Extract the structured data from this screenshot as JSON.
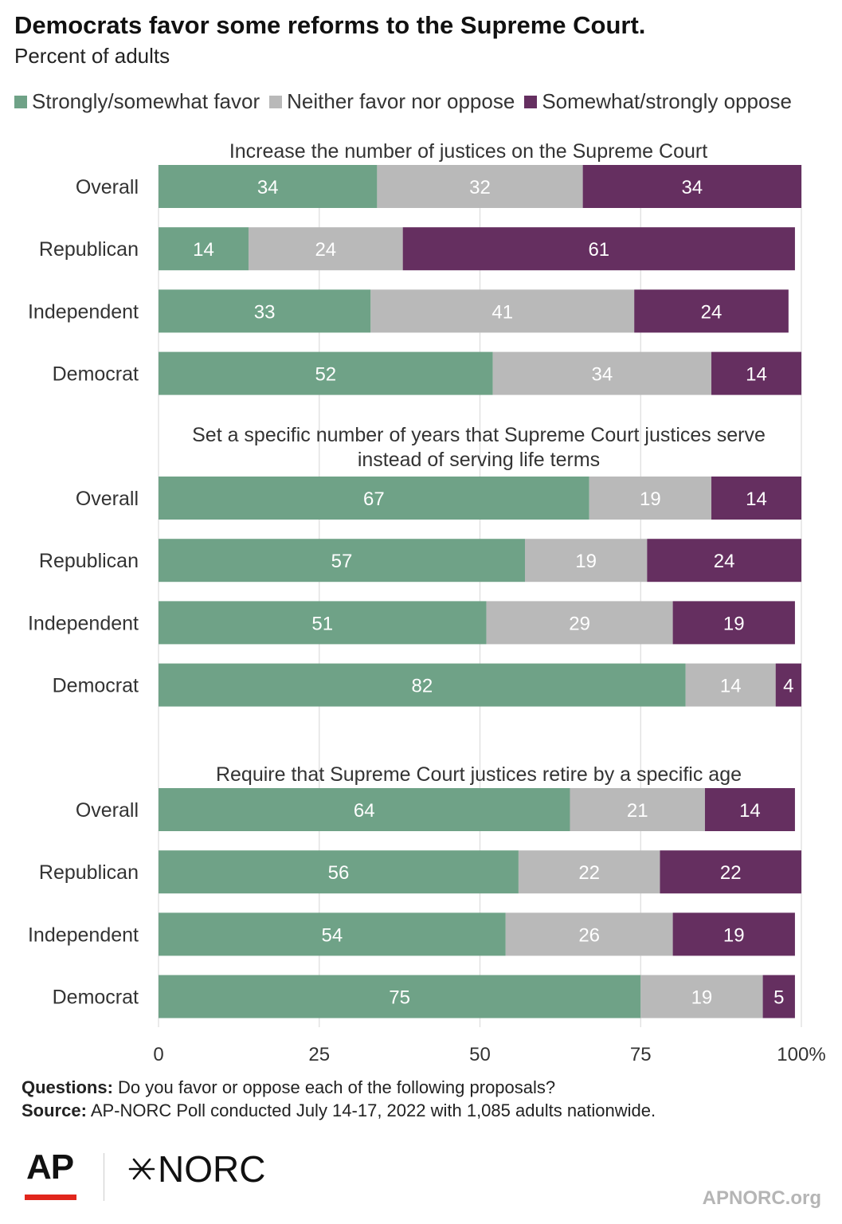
{
  "header": {
    "title": "Democrats favor some reforms to the Supreme Court.",
    "subtitle": "Percent of adults"
  },
  "legend": [
    {
      "label": "Strongly/somewhat favor",
      "color": "#6fa287"
    },
    {
      "label": "Neither favor nor oppose",
      "color": "#b9b9b9"
    },
    {
      "label": "Somewhat/strongly oppose",
      "color": "#652f60"
    }
  ],
  "chart_data": {
    "type": "bar",
    "orientation": "horizontal",
    "stacked": true,
    "xlim": [
      0,
      100
    ],
    "xticks": [
      "0",
      "25",
      "50",
      "75",
      "100%"
    ],
    "grid": true,
    "legend_position": "top",
    "series": [
      {
        "name": "Strongly/somewhat favor",
        "color": "#6fa287"
      },
      {
        "name": "Neither favor nor oppose",
        "color": "#b9b9b9"
      },
      {
        "name": "Somewhat/strongly oppose",
        "color": "#652f60"
      }
    ],
    "panels": [
      {
        "title": "Increase the number of justices on the Supreme Court",
        "rows": [
          {
            "label": "Overall",
            "values": [
              34,
              32,
              34
            ]
          },
          {
            "label": "Republican",
            "values": [
              14,
              24,
              61
            ]
          },
          {
            "label": "Independent",
            "values": [
              33,
              41,
              24
            ]
          },
          {
            "label": "Democrat",
            "values": [
              52,
              34,
              14
            ]
          }
        ]
      },
      {
        "title": "Set a specific number of years that Supreme Court justices serve instead of serving life terms",
        "title_lines": [
          "Set a specific number of years that Supreme Court justices serve",
          "instead of serving life terms"
        ],
        "rows": [
          {
            "label": "Overall",
            "values": [
              67,
              19,
              14
            ]
          },
          {
            "label": "Republican",
            "values": [
              57,
              19,
              24
            ]
          },
          {
            "label": "Independent",
            "values": [
              51,
              29,
              19
            ]
          },
          {
            "label": "Democrat",
            "values": [
              82,
              14,
              4
            ]
          }
        ]
      },
      {
        "title": "Require that Supreme Court justices retire by a specific age",
        "rows": [
          {
            "label": "Overall",
            "values": [
              64,
              21,
              14
            ]
          },
          {
            "label": "Republican",
            "values": [
              56,
              22,
              22
            ]
          },
          {
            "label": "Independent",
            "values": [
              54,
              26,
              19
            ]
          },
          {
            "label": "Democrat",
            "values": [
              75,
              19,
              5
            ]
          }
        ]
      }
    ]
  },
  "notes": {
    "questions_label": "Questions:",
    "questions_text": " Do you favor or oppose each of the following proposals?",
    "source_label": "Source:",
    "source_text": " AP-NORC Poll conducted July 14-17, 2022 with 1,085 adults nationwide."
  },
  "footer": {
    "logo_ap": "AP",
    "logo_norc": "NORC",
    "site": "APNORC.org"
  }
}
